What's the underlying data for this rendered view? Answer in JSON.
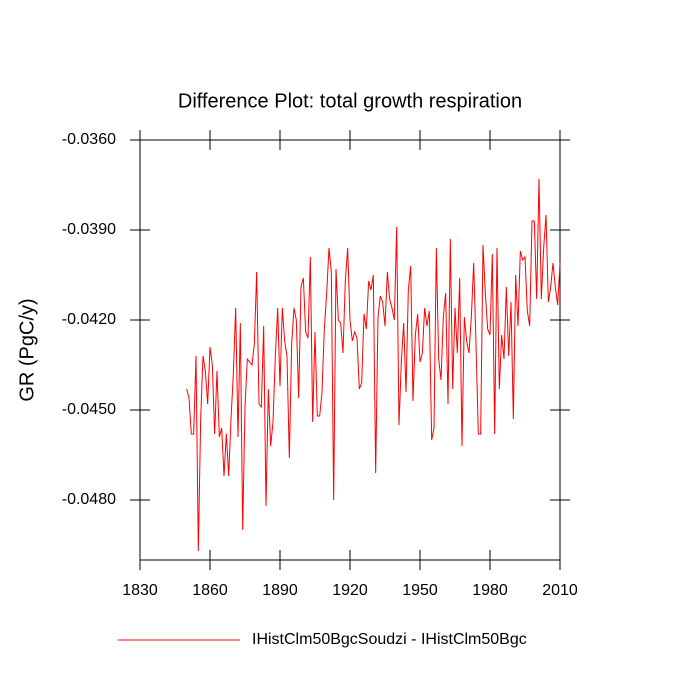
{
  "chart_data": {
    "type": "line",
    "title": "Difference Plot: total growth respiration",
    "y_label": "GR  (PgC/y)",
    "x": [
      1850,
      1851,
      1852,
      1853,
      1854,
      1855,
      1856,
      1857,
      1858,
      1859,
      1860,
      1861,
      1862,
      1863,
      1864,
      1865,
      1866,
      1867,
      1868,
      1869,
      1870,
      1871,
      1872,
      1873,
      1874,
      1875,
      1876,
      1877,
      1878,
      1879,
      1880,
      1881,
      1882,
      1883,
      1884,
      1885,
      1886,
      1887,
      1888,
      1889,
      1890,
      1891,
      1892,
      1893,
      1894,
      1895,
      1896,
      1897,
      1898,
      1899,
      1900,
      1901,
      1902,
      1903,
      1904,
      1905,
      1906,
      1907,
      1908,
      1909,
      1910,
      1911,
      1912,
      1913,
      1914,
      1915,
      1916,
      1917,
      1918,
      1919,
      1920,
      1921,
      1922,
      1923,
      1924,
      1925,
      1926,
      1927,
      1928,
      1929,
      1930,
      1931,
      1932,
      1933,
      1934,
      1935,
      1936,
      1937,
      1938,
      1939,
      1940,
      1941,
      1942,
      1943,
      1944,
      1945,
      1946,
      1947,
      1948,
      1949,
      1950,
      1951,
      1952,
      1953,
      1954,
      1955,
      1956,
      1957,
      1958,
      1959,
      1960,
      1961,
      1962,
      1963,
      1964,
      1965,
      1966,
      1967,
      1968,
      1969,
      1970,
      1971,
      1972,
      1973,
      1974,
      1975,
      1976,
      1977,
      1978,
      1979,
      1980,
      1981,
      1982,
      1983,
      1984,
      1985,
      1986,
      1987,
      1988,
      1989,
      1990,
      1991,
      1992,
      1993,
      1994,
      1995,
      1996,
      1997,
      1998,
      1999,
      2000,
      2001,
      2002,
      2003,
      2004,
      2005,
      2006,
      2007,
      2008,
      2009,
      2010
    ],
    "series": [
      {
        "name": "IHistClm50BgcSoudzi - IHistClm50Bgc",
        "color": "#ff0000",
        "values": [
          -0.0443,
          -0.0446,
          -0.0458,
          -0.0458,
          -0.0432,
          -0.0497,
          -0.0453,
          -0.0432,
          -0.0437,
          -0.0448,
          -0.0429,
          -0.0435,
          -0.0458,
          -0.0437,
          -0.0459,
          -0.0456,
          -0.0472,
          -0.0458,
          -0.0472,
          -0.0453,
          -0.0438,
          -0.0416,
          -0.0459,
          -0.0421,
          -0.049,
          -0.0449,
          -0.0433,
          -0.0434,
          -0.0435,
          -0.0428,
          -0.0404,
          -0.0448,
          -0.0449,
          -0.0422,
          -0.0482,
          -0.0443,
          -0.0462,
          -0.0454,
          -0.0432,
          -0.0416,
          -0.0442,
          -0.0416,
          -0.0427,
          -0.0432,
          -0.0466,
          -0.0428,
          -0.0416,
          -0.042,
          -0.0446,
          -0.0409,
          -0.0406,
          -0.0424,
          -0.0426,
          -0.0399,
          -0.0454,
          -0.0424,
          -0.0452,
          -0.0452,
          -0.0444,
          -0.0423,
          -0.0411,
          -0.0396,
          -0.0404,
          -0.048,
          -0.0403,
          -0.042,
          -0.0421,
          -0.0431,
          -0.0407,
          -0.0396,
          -0.042,
          -0.0427,
          -0.0424,
          -0.0426,
          -0.0443,
          -0.0441,
          -0.0418,
          -0.0423,
          -0.0407,
          -0.041,
          -0.0405,
          -0.0471,
          -0.0419,
          -0.0412,
          -0.0414,
          -0.0422,
          -0.0404,
          -0.0413,
          -0.0416,
          -0.042,
          -0.0389,
          -0.0455,
          -0.0434,
          -0.0421,
          -0.0444,
          -0.041,
          -0.0402,
          -0.0447,
          -0.0425,
          -0.0418,
          -0.0434,
          -0.0431,
          -0.0416,
          -0.0422,
          -0.0417,
          -0.046,
          -0.0456,
          -0.0396,
          -0.0433,
          -0.044,
          -0.0419,
          -0.0411,
          -0.0448,
          -0.0393,
          -0.0443,
          -0.0416,
          -0.0431,
          -0.0406,
          -0.0462,
          -0.0419,
          -0.0427,
          -0.0431,
          -0.0419,
          -0.0401,
          -0.0428,
          -0.0458,
          -0.0458,
          -0.0395,
          -0.0411,
          -0.0423,
          -0.0425,
          -0.0398,
          -0.0458,
          -0.0396,
          -0.0443,
          -0.0425,
          -0.0433,
          -0.0409,
          -0.0432,
          -0.0414,
          -0.0453,
          -0.0405,
          -0.0422,
          -0.0397,
          -0.04,
          -0.0399,
          -0.0417,
          -0.0422,
          -0.0387,
          -0.0387,
          -0.0413,
          -0.0373,
          -0.0413,
          -0.0396,
          -0.0385,
          -0.0414,
          -0.0409,
          -0.0401,
          -0.0409,
          -0.0415,
          -0.0401
        ]
      }
    ],
    "xlim": [
      1830,
      2010
    ],
    "xticks": [
      1830,
      1860,
      1890,
      1920,
      1950,
      1980,
      2010
    ],
    "ylim": [
      -0.05,
      -0.036
    ],
    "yticks": [
      {
        "value": -0.048,
        "label": "-0.0480"
      },
      {
        "value": -0.045,
        "label": "-0.0450"
      },
      {
        "value": -0.042,
        "label": "-0.0420"
      },
      {
        "value": -0.039,
        "label": "-0.0390"
      },
      {
        "value": -0.036,
        "label": "-0.0360"
      }
    ],
    "legend": "bottom"
  }
}
